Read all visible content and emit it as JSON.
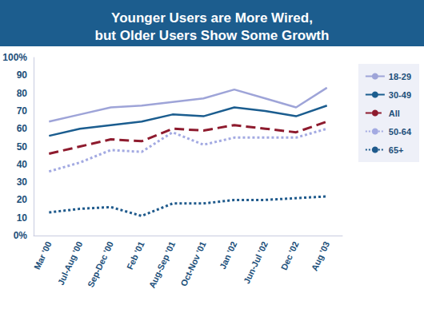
{
  "chart_data": {
    "type": "line",
    "title": "Younger Users are More Wired, but Older Users Show Some Growth",
    "categories": [
      "Mar '00",
      "Jul-Aug '00",
      "Sep-Dec '00",
      "Feb '01",
      "Aug-Sep '01",
      "Oct-Nov '01",
      "Jan '02",
      "Jun-Jul '02",
      "Dec '02",
      "Aug '03"
    ],
    "series": [
      {
        "name": "18-29",
        "color": "#9ea4d8",
        "line_style": "solid",
        "values": [
          64,
          68,
          72,
          73,
          75,
          77,
          82,
          77,
          72,
          83
        ]
      },
      {
        "name": "30-49",
        "color": "#1b5d8f",
        "line_style": "solid",
        "values": [
          56,
          60,
          62,
          64,
          68,
          67,
          72,
          70,
          67,
          73
        ]
      },
      {
        "name": "All",
        "color": "#8e1b2e",
        "line_style": "dashed",
        "values": [
          46,
          50,
          54,
          53,
          60,
          59,
          62,
          60,
          58,
          64
        ]
      },
      {
        "name": "50-64",
        "color": "#a3aae2",
        "line_style": "dotted",
        "values": [
          36,
          41,
          48,
          47,
          58,
          51,
          55,
          55,
          55,
          60
        ]
      },
      {
        "name": "65+",
        "color": "#1f5a8c",
        "line_style": "dotted",
        "values": [
          13,
          15,
          16,
          11,
          18,
          18,
          20,
          20,
          21,
          22
        ]
      }
    ],
    "ylim": [
      0,
      100
    ],
    "yticks": [
      {
        "value": 0,
        "label": "0%"
      },
      10,
      20,
      30,
      40,
      50,
      60,
      70,
      80,
      90,
      {
        "value": 100,
        "label": "100%"
      }
    ],
    "grid": false,
    "legend": "top-right"
  }
}
